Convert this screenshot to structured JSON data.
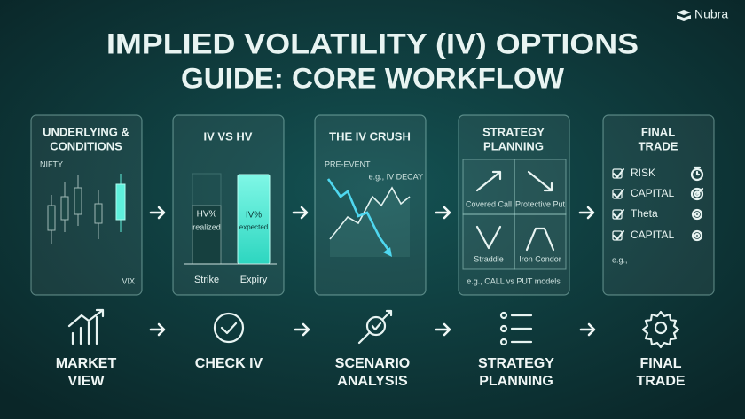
{
  "brand": "Nubra",
  "title": [
    "IMPLIED VOLATILITY (IV) OPTIONS",
    "GUIDE: CORE WORKFLOW"
  ],
  "panels": [
    {
      "title": [
        "UNDERLYING &",
        "CONDITIONS"
      ],
      "labels": [
        "NIFTY",
        "VIX"
      ]
    },
    {
      "title": [
        "IV VS HV"
      ],
      "bars": [
        {
          "label": "HV%",
          "sub": "realized"
        },
        {
          "label": "IV%",
          "sub": "expected"
        }
      ],
      "axis": [
        "Strike",
        "Expiry"
      ]
    },
    {
      "title": [
        "THE IV CRUSH"
      ],
      "labels": [
        "PRE-EVENT",
        "e.g., IV DECAY"
      ]
    },
    {
      "title": [
        "STRATEGY",
        "PLANNING"
      ],
      "cells": [
        "Covered Call",
        "Protective Put",
        "Straddle",
        "Iron Condor"
      ],
      "caption": "e.g., CALL vs PUT models"
    },
    {
      "title": [
        "FINAL",
        "TRADE"
      ],
      "checklist": [
        "RISK",
        "CAPITAL",
        "Theta",
        "CAPITAL"
      ],
      "note": "e.g.,"
    }
  ],
  "steps": [
    [
      "MARKET",
      "VIEW"
    ],
    [
      "CHECK IV"
    ],
    [
      "SCENARIO",
      "ANALYSIS"
    ],
    [
      "STRATEGY",
      "PLANNING"
    ],
    [
      "FINAL",
      "TRADE"
    ]
  ]
}
